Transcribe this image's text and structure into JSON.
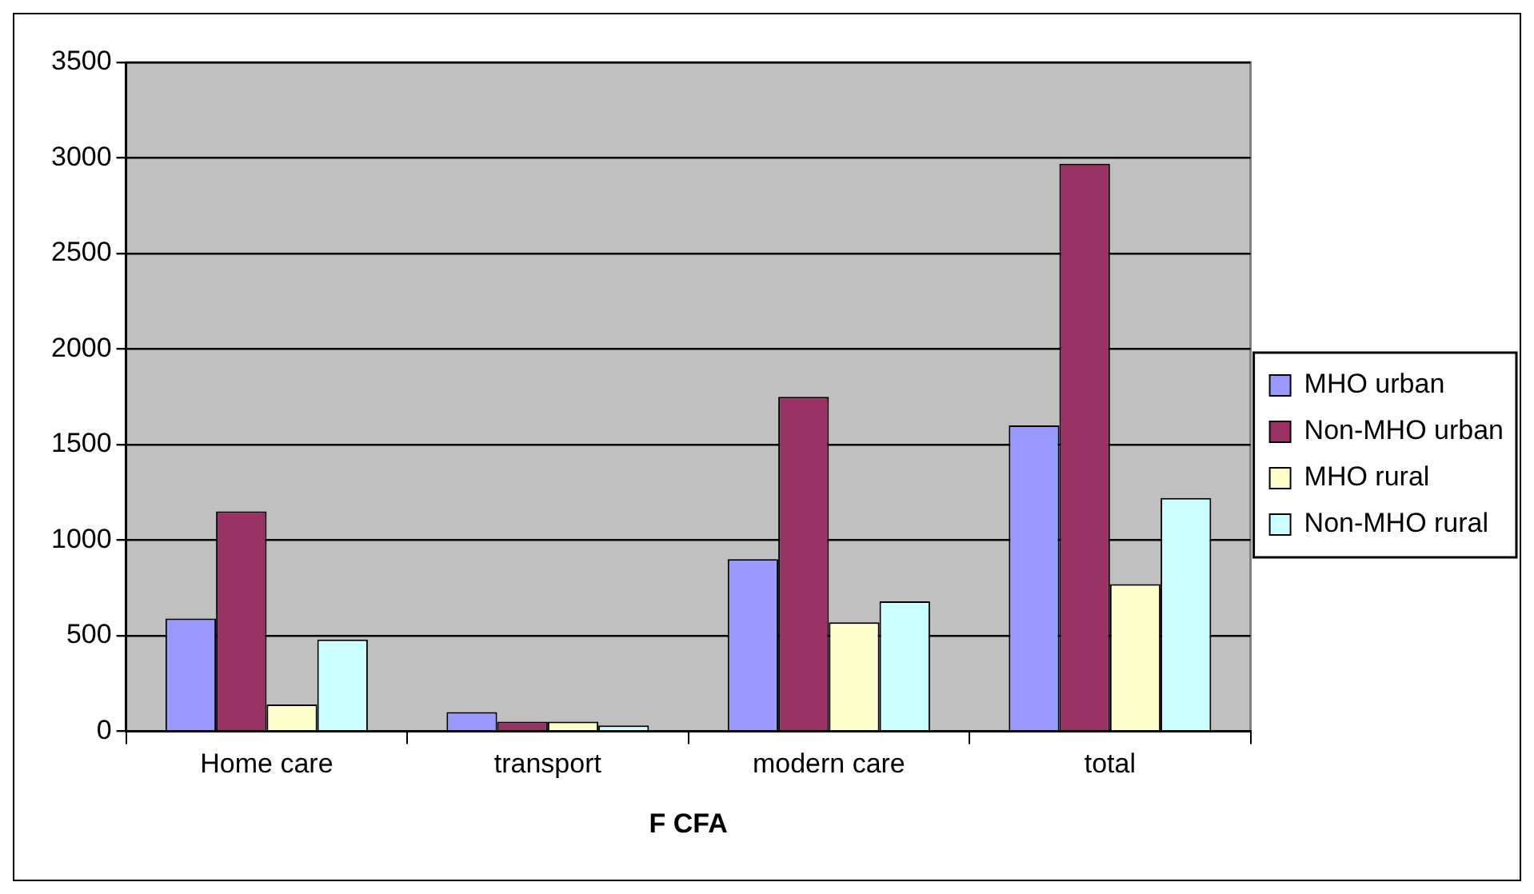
{
  "chart_data": {
    "type": "bar",
    "xlabel": "F CFA",
    "categories": [
      "Home care",
      "transport",
      "modern care",
      "total"
    ],
    "series": [
      {
        "name": "MHO urban",
        "color": "#9999ff",
        "values": [
          590,
          100,
          900,
          1600
        ]
      },
      {
        "name": "Non-MHO urban",
        "color": "#993366",
        "values": [
          1150,
          50,
          1750,
          2970
        ]
      },
      {
        "name": "MHO rural",
        "color": "#ffffcc",
        "values": [
          140,
          50,
          570,
          770
        ]
      },
      {
        "name": "Non-MHO rural",
        "color": "#ccffff",
        "values": [
          480,
          30,
          680,
          1220
        ]
      }
    ],
    "ylim": [
      0,
      3500
    ],
    "yticks": [
      0,
      500,
      1000,
      1500,
      2000,
      2500,
      3000,
      3500
    ],
    "grid": "y",
    "legend": "right"
  }
}
